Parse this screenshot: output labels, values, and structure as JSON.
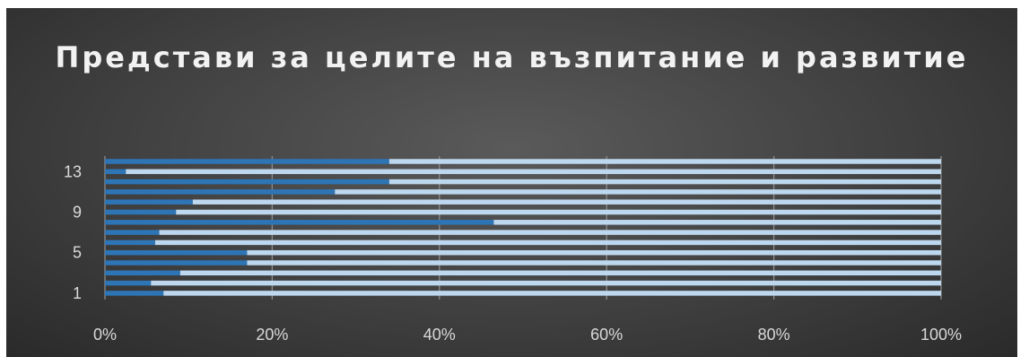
{
  "chart_data": {
    "type": "bar",
    "orientation": "horizontal",
    "stacked": "percent",
    "title": "Представи за целите на възпитание и развитие",
    "xlabel": "",
    "ylabel": "",
    "xlim": [
      0,
      100
    ],
    "x_ticks": [
      "0%",
      "20%",
      "40%",
      "60%",
      "80%",
      "100%"
    ],
    "categories": [
      "1",
      "2",
      "3",
      "4",
      "5",
      "6",
      "7",
      "8",
      "9",
      "10",
      "11",
      "12",
      "13",
      "14"
    ],
    "y_tick_labels": [
      "1",
      "5",
      "9",
      "13"
    ],
    "grid": "vertical",
    "legend": "none",
    "series": [
      {
        "color": "#2e75b6",
        "values": [
          7,
          5.5,
          9,
          17,
          17,
          6,
          6.5,
          46.5,
          8.5,
          10.5,
          27.5,
          34,
          2.5,
          34
        ]
      },
      {
        "color": "#bdd7ee",
        "values": [
          93,
          94.5,
          91,
          83,
          83,
          94,
          93.5,
          53.5,
          91.5,
          89.5,
          72.5,
          66,
          97.5,
          66
        ]
      }
    ]
  }
}
